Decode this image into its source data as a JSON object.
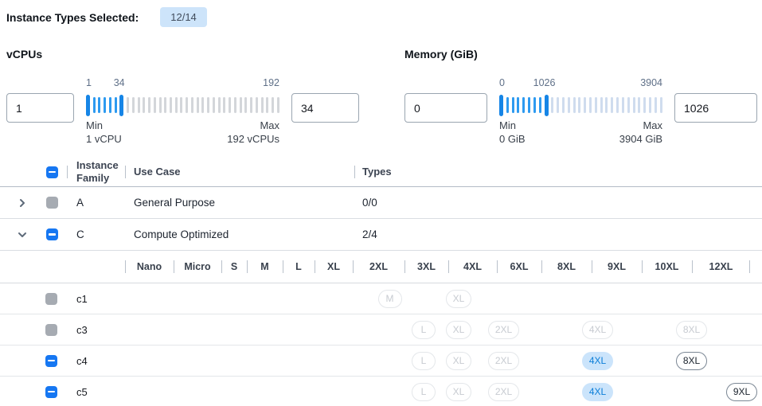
{
  "header": {
    "label": "Instance Types Selected:",
    "badge": "12/14"
  },
  "filters": [
    {
      "id": "vcpus",
      "label": "vCPUs",
      "min_input": "1",
      "max_input": "34",
      "slider": {
        "start_label": "1",
        "handle_label": "34",
        "end_label": "192",
        "tick_count": 36,
        "handle_start_index": 0,
        "handle_end_index": 6,
        "inactive_color": "#d3d6da",
        "min_title": "Min",
        "min_value": "1 vCPU",
        "max_title": "Max",
        "max_value": "192 vCPUs"
      }
    },
    {
      "id": "memory",
      "label": "Memory (GiB)",
      "min_input": "0",
      "max_input": "1026",
      "slider": {
        "start_label": "0",
        "handle_label": "1026",
        "end_label": "3904",
        "tick_count": 30,
        "handle_start_index": 0,
        "handle_end_index": 8,
        "inactive_color": "#cfdcee",
        "min_title": "Min",
        "min_value": "0 GiB",
        "max_title": "Max",
        "max_value": "3904 GiB"
      }
    }
  ],
  "table": {
    "header": {
      "family": "Instance Family",
      "use_case": "Use Case",
      "types": "Types"
    },
    "select_all_state": "indeterminate",
    "size_columns": [
      "Nano",
      "Micro",
      "S",
      "M",
      "L",
      "XL",
      "2XL",
      "3XL",
      "4XL",
      "6XL",
      "8XL",
      "9XL",
      "10XL",
      "12XL"
    ],
    "families": [
      {
        "family": "A",
        "use_case": "General Purpose",
        "types": "0/0",
        "expanded": false,
        "checkbox": "disabled",
        "instances": []
      },
      {
        "family": "C",
        "use_case": "Compute Optimized",
        "types": "2/4",
        "expanded": true,
        "checkbox": "indeterminate",
        "instances": [
          {
            "name": "c1",
            "checkbox": "disabled",
            "sizes": {
              "M": "disabled",
              "XL": "disabled"
            }
          },
          {
            "name": "c3",
            "checkbox": "disabled",
            "sizes": {
              "L": "disabled",
              "XL": "disabled",
              "2XL": "disabled",
              "4XL": "disabled",
              "8XL": "disabled"
            }
          },
          {
            "name": "c4",
            "checkbox": "indeterminate",
            "sizes": {
              "L": "disabled",
              "XL": "disabled",
              "2XL": "disabled",
              "4XL": "selected",
              "8XL": "enabled"
            }
          },
          {
            "name": "c5",
            "checkbox": "indeterminate",
            "sizes": {
              "L": "disabled",
              "XL": "disabled",
              "2XL": "disabled",
              "4XL": "selected",
              "9XL": "enabled",
              "12XL": "disabled"
            }
          }
        ]
      }
    ]
  },
  "colors": {
    "accent_blue": "#1677f2",
    "badge_bg": "#cde4fa",
    "selected_pill_bg": "#cbe4fb",
    "selected_pill_text": "#0b7ed8",
    "slider_active_tick": "#2d9af0",
    "slider_handle": "#1685e6",
    "disabled_checkbox": "#a6abb2"
  }
}
